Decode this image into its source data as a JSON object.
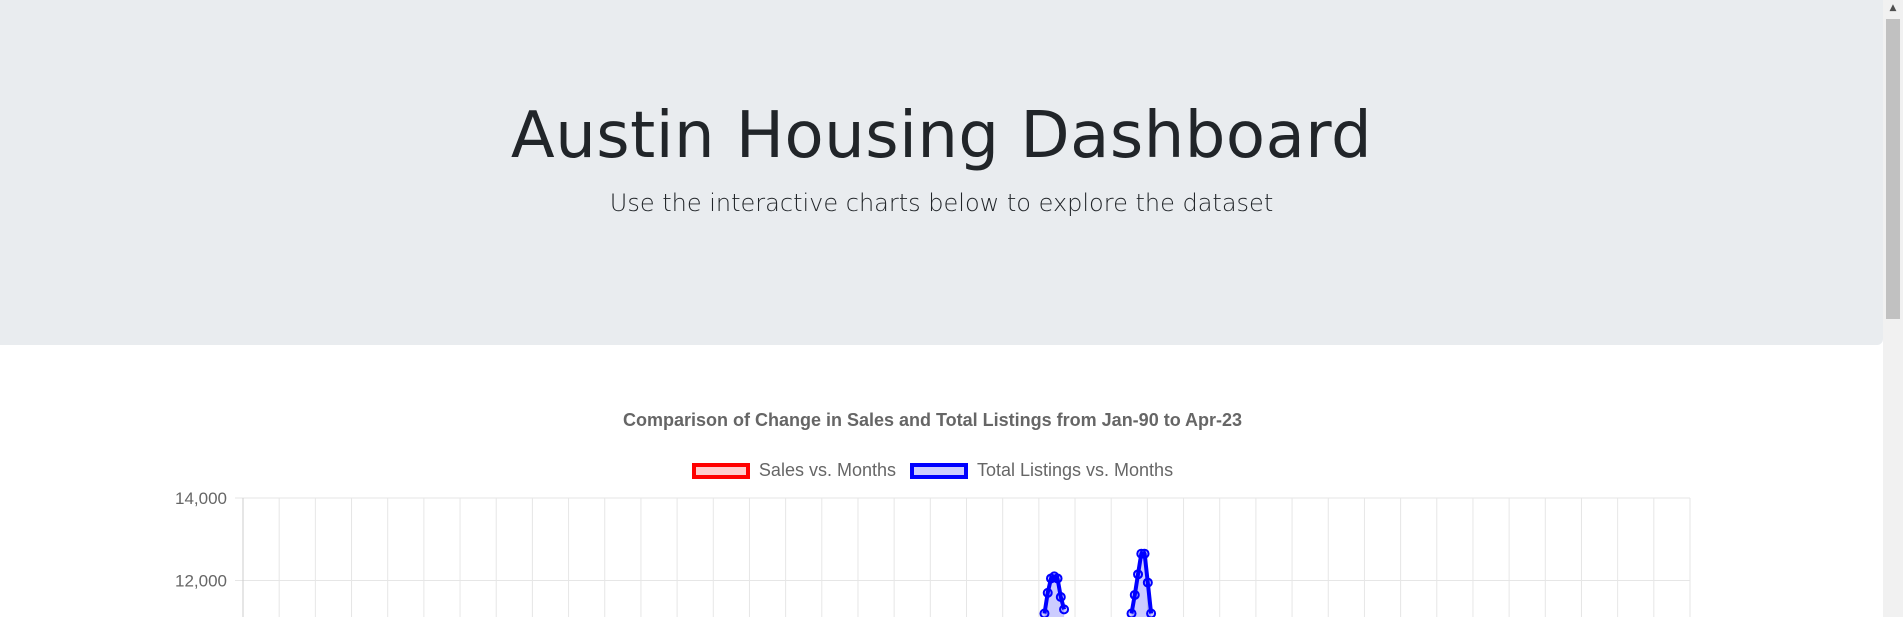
{
  "header": {
    "title": "Austin Housing Dashboard",
    "subtitle": "Use the interactive charts below to explore the dataset"
  },
  "chart_data": {
    "type": "line",
    "title": "Comparison of Change in Sales and Total Listings from Jan-90 to Apr-23",
    "legend": [
      {
        "name": "Sales vs. Months",
        "border": "#ff0000",
        "fill": "rgba(255,0,0,0.2)"
      },
      {
        "name": "Total Listings vs. Months",
        "border": "#0000ff",
        "fill": "rgba(0,0,255,0.2)"
      }
    ],
    "y_ticks": [
      "14,000",
      "12,000"
    ],
    "ylim_visible": [
      11100,
      14000
    ],
    "grid": true,
    "series": [
      {
        "name": "Total Listings vs. Months",
        "color": "#0000ff",
        "peaks": [
          {
            "month_index": 221,
            "values": [
              11200,
              11700,
              12050,
              12100,
              12050,
              11600,
              11300
            ]
          },
          {
            "month_index": 245,
            "values": [
              11200,
              11650,
              12150,
              12650,
              12650,
              11950,
              11200
            ]
          }
        ]
      }
    ]
  },
  "scrollbar": {
    "up_arrow": "▲"
  }
}
